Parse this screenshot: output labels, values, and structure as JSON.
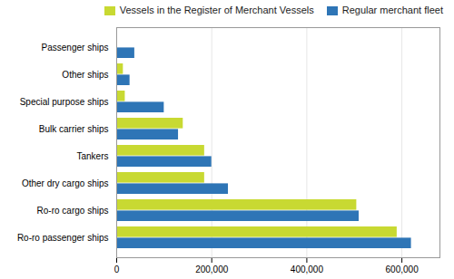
{
  "chart_data": {
    "type": "bar",
    "orientation": "horizontal",
    "categories": [
      "Passenger ships",
      "Other ships",
      "Special purpose ships",
      "Bulk carrier ships",
      "Tankers",
      "Other dry cargo ships",
      "Ro-ro cargo ships",
      "Ro-ro passenger ships"
    ],
    "series": [
      {
        "name": "Vessels in the Register of Merchant Vessels",
        "color": "#c8d932",
        "values": [
          0,
          14000,
          18000,
          140000,
          185000,
          185000,
          505000,
          590000
        ]
      },
      {
        "name": "Regular merchant fleet",
        "color": "#2e75b6",
        "values": [
          38000,
          28000,
          100000,
          130000,
          200000,
          235000,
          510000,
          620000
        ]
      }
    ],
    "xlim": [
      0,
      680000
    ],
    "xticks": [
      0,
      {
        "value": 200000,
        "label": "200,000"
      },
      {
        "value": 400000,
        "label": "400,000"
      },
      {
        "value": 600000,
        "label": "600,000"
      }
    ],
    "grid": true,
    "legend": "upper right"
  }
}
